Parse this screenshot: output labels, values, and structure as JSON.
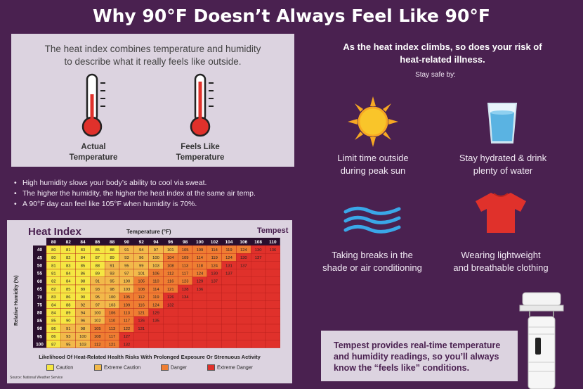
{
  "title": "Why 90°F Doesn’t Always Feel Like 90°F",
  "intro": {
    "line1": "The heat index combines temperature and humidity",
    "line2": "to describe what it really feels like outside.",
    "actual_label_1": "Actual",
    "actual_label_2": "Temperature",
    "feels_label_1": "Feels Like",
    "feels_label_2": "Temperature"
  },
  "bullets": [
    "High humidity slows your body’s ability to cool via sweat.",
    "The higher the humidity, the higher the heat index at the same air temp.",
    "A 90°F day can feel like 105°F when humidity is 70%."
  ],
  "heat_index": {
    "title": "Heat Index",
    "temp_label": "Temperature (°F)",
    "brand": "Tempest",
    "rh_label": "Relative Humidity (%)",
    "likelihood": "Likelihood Of Heat-Related Health Risks With Prolonged Exposure Or Strenuous Activity",
    "source": "Source: National Weather Service",
    "legend": [
      {
        "label": "Caution",
        "color": "#f5e642"
      },
      {
        "label": "Extreme Caution",
        "color": "#f2b94a"
      },
      {
        "label": "Danger",
        "color": "#ef7d32"
      },
      {
        "label": "Extreme Danger",
        "color": "#e0312b"
      }
    ]
  },
  "chart_data": {
    "type": "heatmap",
    "title": "Heat Index",
    "xlabel": "Temperature (°F)",
    "ylabel": "Relative Humidity (%)",
    "x": [
      80,
      82,
      84,
      86,
      88,
      90,
      92,
      94,
      96,
      98,
      100,
      102,
      104,
      106,
      108,
      110
    ],
    "y": [
      40,
      45,
      50,
      55,
      60,
      65,
      70,
      75,
      80,
      85,
      90,
      95,
      100
    ],
    "values": [
      [
        80,
        81,
        83,
        85,
        88,
        91,
        94,
        97,
        101,
        105,
        109,
        114,
        119,
        124,
        130,
        136
      ],
      [
        80,
        82,
        84,
        87,
        89,
        93,
        96,
        100,
        104,
        109,
        114,
        119,
        124,
        130,
        137,
        null
      ],
      [
        81,
        83,
        85,
        88,
        91,
        95,
        99,
        103,
        108,
        113,
        118,
        124,
        131,
        137,
        null,
        null
      ],
      [
        81,
        84,
        86,
        89,
        93,
        97,
        101,
        106,
        112,
        117,
        124,
        130,
        137,
        null,
        null,
        null
      ],
      [
        82,
        84,
        88,
        91,
        95,
        100,
        105,
        110,
        116,
        123,
        129,
        137,
        null,
        null,
        null,
        null
      ],
      [
        82,
        85,
        89,
        93,
        98,
        103,
        108,
        114,
        121,
        128,
        136,
        null,
        null,
        null,
        null,
        null
      ],
      [
        83,
        86,
        90,
        95,
        100,
        105,
        112,
        119,
        126,
        134,
        null,
        null,
        null,
        null,
        null,
        null
      ],
      [
        84,
        88,
        92,
        97,
        103,
        109,
        116,
        124,
        132,
        null,
        null,
        null,
        null,
        null,
        null,
        null
      ],
      [
        84,
        89,
        94,
        100,
        106,
        113,
        121,
        129,
        null,
        null,
        null,
        null,
        null,
        null,
        null,
        null
      ],
      [
        85,
        90,
        96,
        102,
        110,
        117,
        126,
        135,
        null,
        null,
        null,
        null,
        null,
        null,
        null,
        null
      ],
      [
        86,
        91,
        98,
        105,
        113,
        122,
        131,
        null,
        null,
        null,
        null,
        null,
        null,
        null,
        null,
        null
      ],
      [
        86,
        93,
        100,
        108,
        117,
        127,
        null,
        null,
        null,
        null,
        null,
        null,
        null,
        null,
        null,
        null
      ],
      [
        87,
        95,
        103,
        112,
        121,
        132,
        null,
        null,
        null,
        null,
        null,
        null,
        null,
        null,
        null,
        null
      ]
    ]
  },
  "right": {
    "headline_1": "As the heat index climbs, so does your risk of",
    "headline_2": "heat-related illness.",
    "stay_safe": "Stay safe by:",
    "tips": [
      {
        "line1": "Limit time outside",
        "line2": "during peak sun",
        "icon": "sun-icon"
      },
      {
        "line1": "Stay hydrated & drink",
        "line2": "plenty of water",
        "icon": "water-glass-icon"
      },
      {
        "line1": "Taking breaks in the",
        "line2": "shade or air conditioning",
        "icon": "wind-waves-icon"
      },
      {
        "line1": "Wearing lightweight",
        "line2": "and breathable clothing",
        "icon": "tshirt-icon"
      }
    ],
    "tempest_text": "Tempest provides real-time temperature and humidity readings, so you’ll always know the “feels like” conditions."
  }
}
